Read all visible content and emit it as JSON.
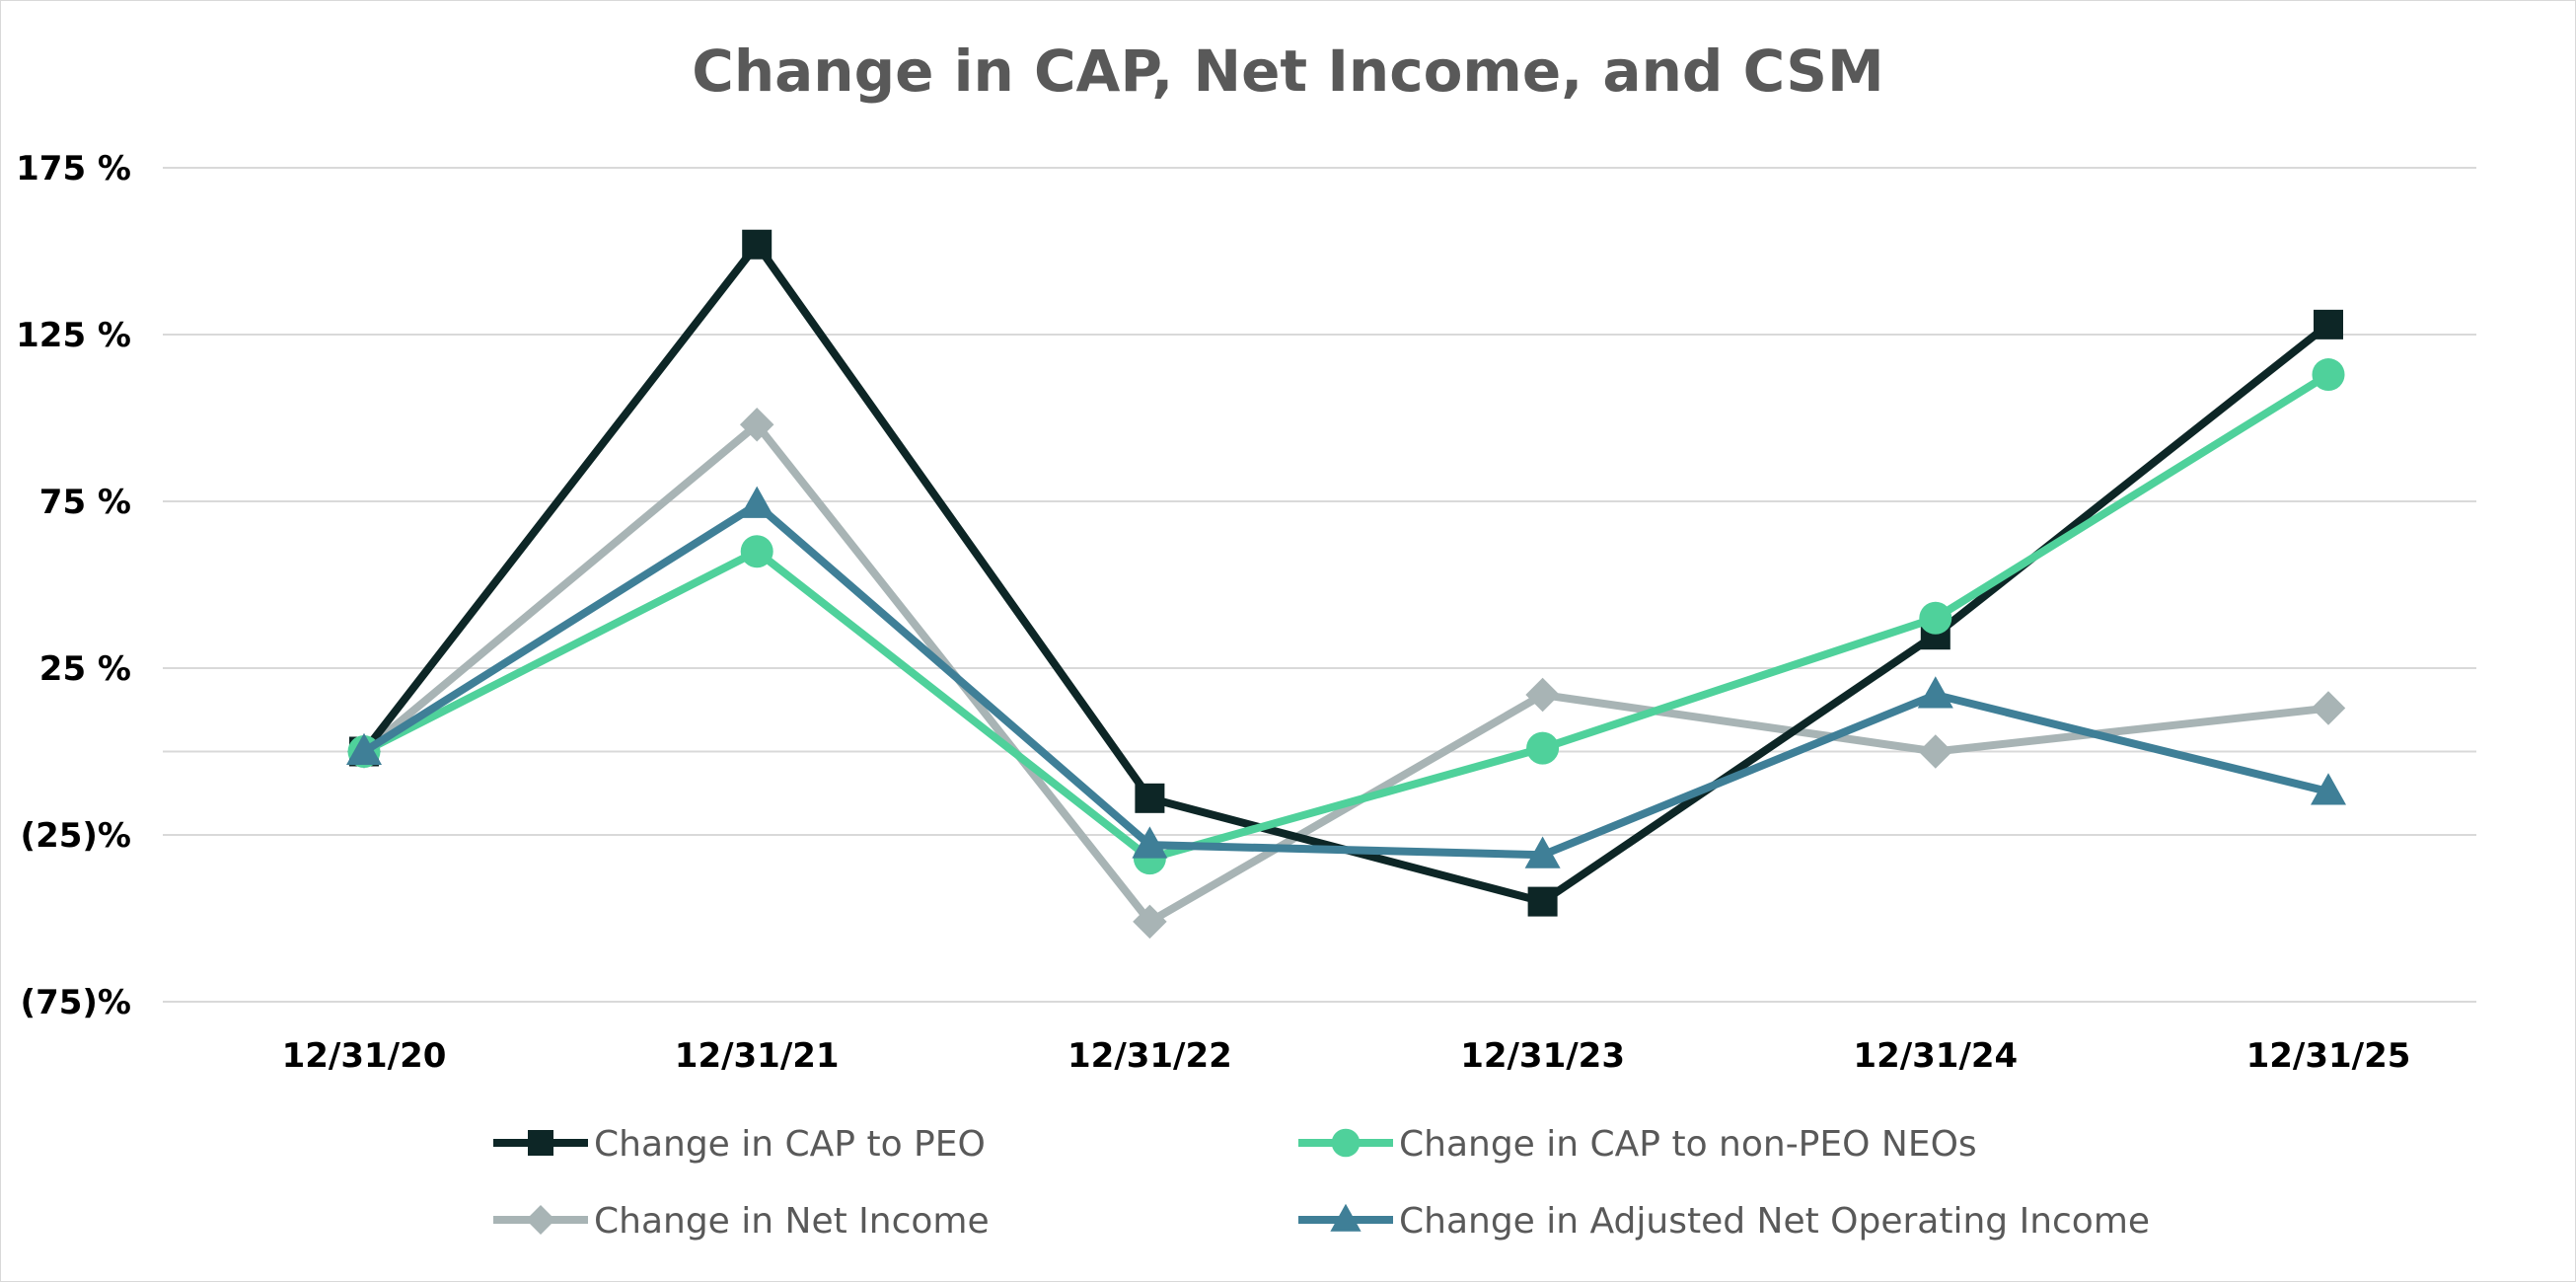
{
  "chart_data": {
    "type": "line",
    "title": "Change in CAP, Net Income, and CSM",
    "xlabel": "",
    "ylabel": "",
    "categories": [
      "12/31/20",
      "12/31/21",
      "12/31/22",
      "12/31/23",
      "12/31/24",
      "12/31/25"
    ],
    "ylim": [
      -75,
      175
    ],
    "yticks": [
      175,
      125,
      75,
      25,
      0,
      -25,
      -75
    ],
    "ytick_labels": [
      "175 %",
      "125 %",
      "75 %",
      "25 %",
      "",
      "(25)%",
      "(75)%"
    ],
    "grid": true,
    "legend_position": "bottom",
    "series": [
      {
        "name": "Change in CAP to PEO",
        "color": "#0d2626",
        "marker": "square",
        "values": [
          0,
          152,
          -14,
          -45,
          35,
          128
        ]
      },
      {
        "name": "Change in CAP to non-PEO NEOs",
        "color": "#4fd19b",
        "marker": "circle",
        "values": [
          0,
          60,
          -32,
          1,
          40,
          113
        ]
      },
      {
        "name": "Change in Net Income",
        "color": "#a8b4b5",
        "marker": "diamond",
        "values": [
          0,
          98,
          -51,
          17,
          0,
          13
        ]
      },
      {
        "name": "Change in Adjusted Net Operating Income",
        "color": "#3f7f97",
        "marker": "triangle",
        "values": [
          0,
          74,
          -28,
          -31,
          17,
          -12
        ]
      }
    ]
  }
}
